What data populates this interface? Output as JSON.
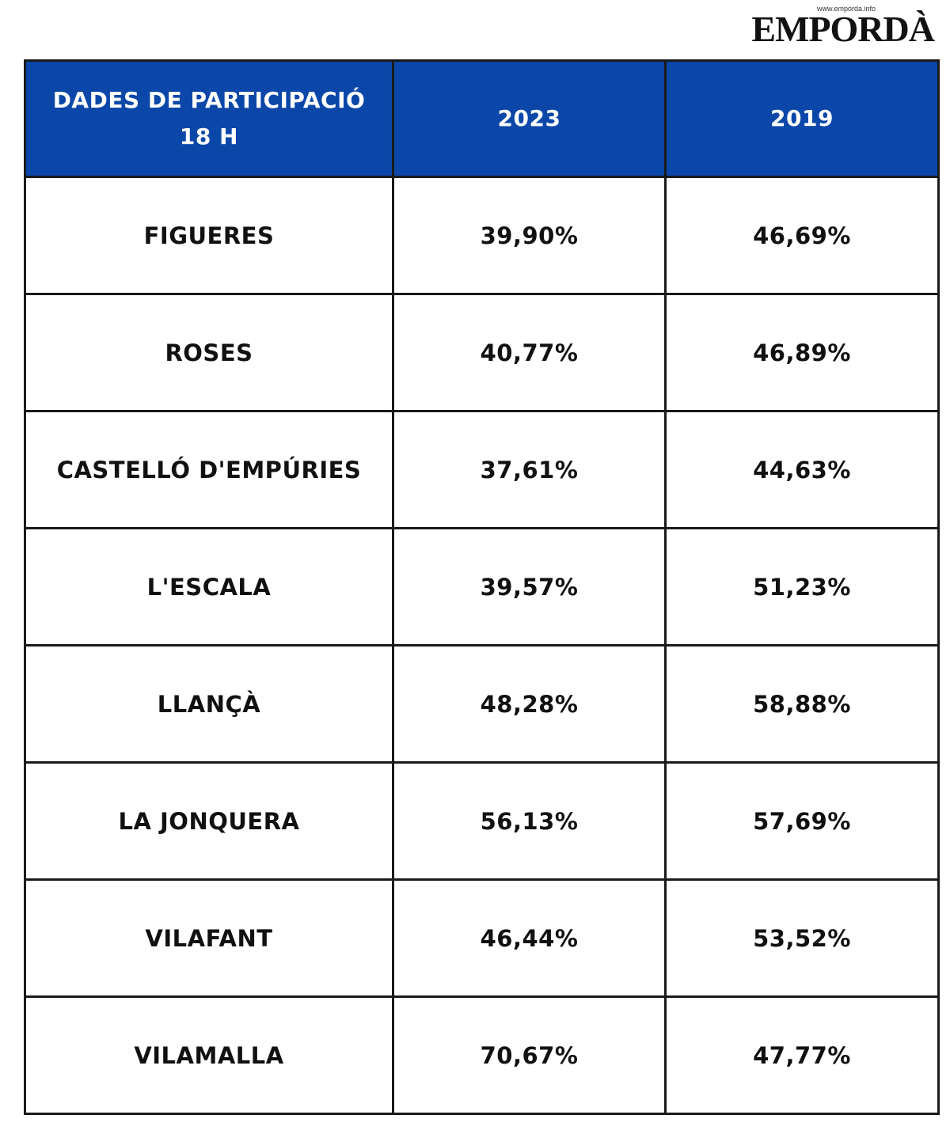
{
  "brand": {
    "url": "www.emporda.info",
    "name": "EMPORDÀ"
  },
  "table": {
    "header": {
      "title_line1": "DADES DE PARTICIPACIÓ",
      "title_line2": "18 H",
      "col_2023": "2023",
      "col_2019": "2019"
    },
    "rows": [
      {
        "municipality": "FIGUERES",
        "y2023": "39,90%",
        "y2019": "46,69%"
      },
      {
        "municipality": "ROSES",
        "y2023": "40,77%",
        "y2019": "46,89%"
      },
      {
        "municipality": "CASTELLÓ D'EMPÚRIES",
        "y2023": "37,61%",
        "y2019": "44,63%"
      },
      {
        "municipality": "L'ESCALA",
        "y2023": "39,57%",
        "y2019": "51,23%"
      },
      {
        "municipality": "LLANÇÀ",
        "y2023": "48,28%",
        "y2019": "58,88%"
      },
      {
        "municipality": "LA JONQUERA",
        "y2023": "56,13%",
        "y2019": "57,69%"
      },
      {
        "municipality": "VILAFANT",
        "y2023": "46,44%",
        "y2019": "53,52%"
      },
      {
        "municipality": "VILAMALLA",
        "y2023": "70,67%",
        "y2019": "47,77%"
      }
    ]
  },
  "colors": {
    "header_bg": "#0a47a8",
    "header_text": "#ffffff",
    "border": "#1a1a1a"
  }
}
